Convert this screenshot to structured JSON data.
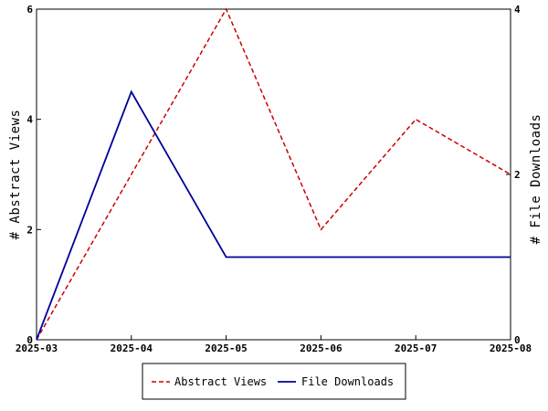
{
  "chart_data": {
    "type": "line",
    "x": [
      "2025-03",
      "2025-04",
      "2025-05",
      "2025-06",
      "2025-07",
      "2025-08"
    ],
    "series": [
      {
        "name": "Abstract Views",
        "axis": "left",
        "color": "#cc0000",
        "style": "dashed",
        "values": [
          0,
          3,
          6,
          2,
          4,
          3
        ]
      },
      {
        "name": "File Downloads",
        "axis": "right",
        "color": "#000099",
        "style": "solid",
        "values": [
          0,
          3,
          1,
          1,
          1,
          1
        ]
      }
    ],
    "ylabel": "# Abstract Views",
    "y2label": "# File Downloads",
    "ylim": [
      0,
      6
    ],
    "y2lim": [
      0,
      4
    ],
    "yticks": [
      "0",
      "2",
      "4",
      "6"
    ],
    "y2ticks": [
      "0",
      "2",
      "4"
    ],
    "grid": false,
    "legend_position": "bottom-center"
  }
}
